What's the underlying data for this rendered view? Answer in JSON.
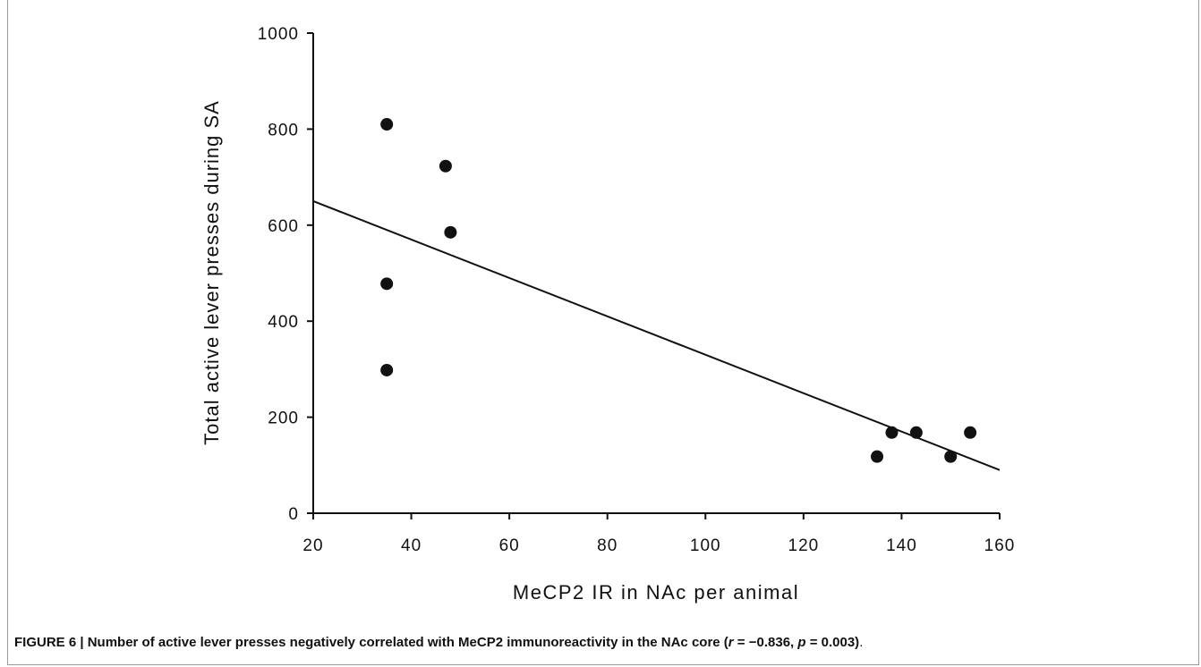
{
  "figure": {
    "caption_bold": "FIGURE 6 | Number of active lever presses negatively correlated with MeCP2 immunoreactivity in the NAc core (",
    "caption_r": "r",
    "caption_r_value": " = −0.836, ",
    "caption_p": "p",
    "caption_p_value": " = 0.003)",
    "caption_end": "."
  },
  "chart_data": {
    "type": "scatter",
    "xlabel": "MeCP2 IR in NAc per animal",
    "ylabel": "Total active lever presses during SA",
    "xlim": [
      20,
      160
    ],
    "ylim": [
      0,
      1000
    ],
    "xticks": [
      20,
      40,
      60,
      80,
      100,
      120,
      140,
      160
    ],
    "yticks": [
      0,
      200,
      400,
      600,
      800,
      1000
    ],
    "grid": false,
    "points": [
      {
        "x": 35,
        "y": 810
      },
      {
        "x": 47,
        "y": 723
      },
      {
        "x": 48,
        "y": 585
      },
      {
        "x": 35,
        "y": 478
      },
      {
        "x": 35,
        "y": 298
      },
      {
        "x": 135,
        "y": 118
      },
      {
        "x": 138,
        "y": 168
      },
      {
        "x": 143,
        "y": 168
      },
      {
        "x": 150,
        "y": 118
      },
      {
        "x": 154,
        "y": 168
      }
    ],
    "trendline": {
      "x": [
        20,
        160
      ],
      "y": [
        650,
        90
      ]
    },
    "colors": {
      "marker": "#111111",
      "line": "#111111",
      "axis": "#111111"
    }
  }
}
